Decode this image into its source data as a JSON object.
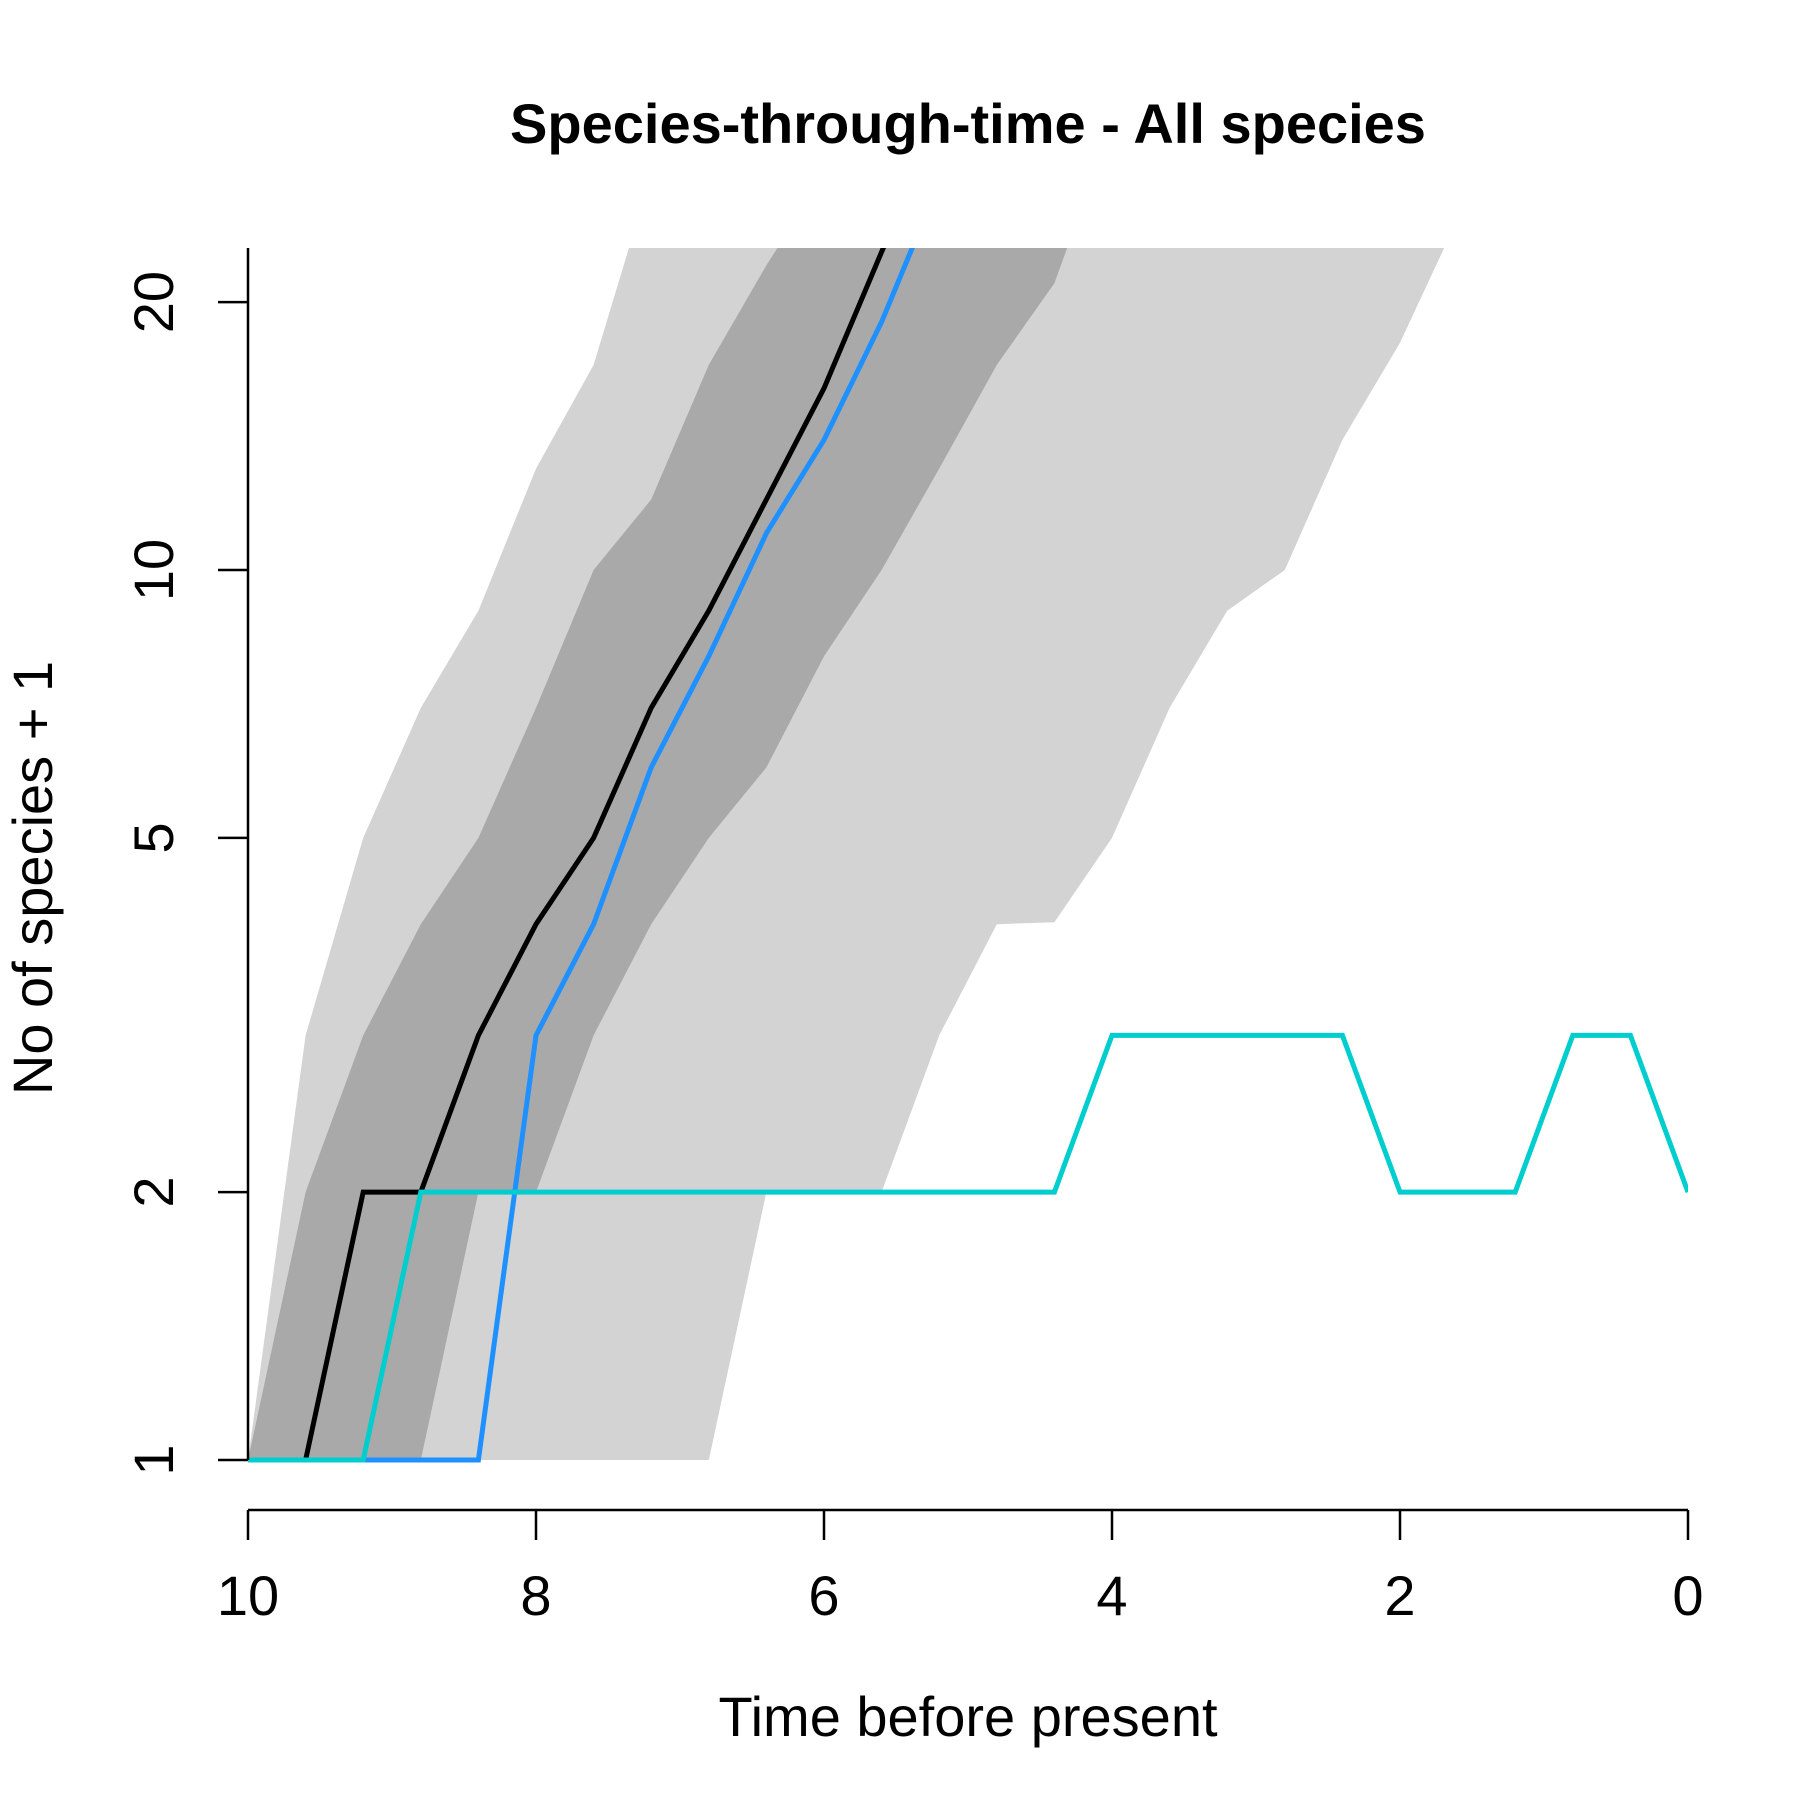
{
  "chart_data": {
    "type": "line",
    "title": "Species-through-time - All species",
    "xlabel": "Time before present",
    "ylabel": "No of species + 1",
    "xlim": [
      10,
      0
    ],
    "ylim": [
      0.9,
      22
    ],
    "y_scale": "log",
    "grid": false,
    "x_ticks": [
      {
        "value": 10,
        "label": "10"
      },
      {
        "value": 8,
        "label": "8"
      },
      {
        "value": 6,
        "label": "6"
      },
      {
        "value": 4,
        "label": "4"
      },
      {
        "value": 2,
        "label": "2"
      },
      {
        "value": 0,
        "label": "0"
      }
    ],
    "y_ticks": [
      {
        "value": 1,
        "label": "1"
      },
      {
        "value": 2,
        "label": "2"
      },
      {
        "value": 5,
        "label": "5"
      },
      {
        "value": 10,
        "label": "10"
      },
      {
        "value": 20,
        "label": "20"
      }
    ],
    "bands": [
      {
        "fill": "#d3d3d3",
        "upper": [
          [
            10,
            1
          ],
          [
            9.6,
            3
          ],
          [
            9.2,
            5
          ],
          [
            8.8,
            7
          ],
          [
            8.4,
            9
          ],
          [
            8.0,
            13
          ],
          [
            7.6,
            17
          ],
          [
            7.32,
            24
          ]
        ],
        "lower": [
          [
            10,
            1
          ],
          [
            6.8,
            1
          ],
          [
            6.4,
            2
          ],
          [
            5.6,
            2
          ],
          [
            5.2,
            3
          ],
          [
            4.8,
            4
          ],
          [
            4.4,
            4.02
          ],
          [
            4.0,
            5
          ],
          [
            3.6,
            7
          ],
          [
            3.2,
            9
          ],
          [
            2.8,
            10
          ],
          [
            2.4,
            14
          ],
          [
            2.0,
            18
          ],
          [
            1.64,
            24
          ]
        ]
      },
      {
        "fill": "#a9a9a9",
        "upper": [
          [
            10,
            1
          ],
          [
            9.6,
            2
          ],
          [
            9.2,
            3
          ],
          [
            8.8,
            4
          ],
          [
            8.4,
            5
          ],
          [
            8.0,
            7
          ],
          [
            7.6,
            10
          ],
          [
            7.2,
            12
          ],
          [
            6.8,
            17
          ],
          [
            6.4,
            22
          ],
          [
            6.25,
            24
          ]
        ],
        "lower": [
          [
            10,
            1
          ],
          [
            8.8,
            1
          ],
          [
            8.4,
            2
          ],
          [
            8.0,
            2
          ],
          [
            7.6,
            3
          ],
          [
            7.2,
            4
          ],
          [
            6.8,
            5
          ],
          [
            6.4,
            6
          ],
          [
            6.0,
            8
          ],
          [
            5.6,
            10
          ],
          [
            5.2,
            13
          ],
          [
            4.8,
            17
          ],
          [
            4.4,
            21
          ],
          [
            4.27,
            24
          ]
        ]
      }
    ],
    "series": [
      {
        "color": "#000000",
        "values": [
          [
            10,
            1
          ],
          [
            9.6,
            1
          ],
          [
            9.2,
            2
          ],
          [
            8.8,
            2
          ],
          [
            8.4,
            3
          ],
          [
            8.0,
            4
          ],
          [
            7.6,
            5
          ],
          [
            7.2,
            7
          ],
          [
            6.8,
            9
          ],
          [
            6.4,
            12
          ],
          [
            6.0,
            16
          ],
          [
            5.54,
            24
          ]
        ]
      },
      {
        "color": "#1e90ff",
        "values": [
          [
            10,
            1
          ],
          [
            8.4,
            1
          ],
          [
            8.0,
            3
          ],
          [
            7.6,
            4
          ],
          [
            7.2,
            6
          ],
          [
            6.8,
            8
          ],
          [
            6.4,
            11
          ],
          [
            6.0,
            14
          ],
          [
            5.6,
            19
          ],
          [
            5.34,
            24
          ]
        ]
      },
      {
        "color": "#00cdcd",
        "values": [
          [
            10,
            1
          ],
          [
            9.2,
            1
          ],
          [
            8.8,
            2
          ],
          [
            4.4,
            2
          ],
          [
            4.0,
            3
          ],
          [
            2.4,
            3
          ],
          [
            2.0,
            2
          ],
          [
            1.2,
            2
          ],
          [
            0.8,
            3
          ],
          [
            0.4,
            3
          ],
          [
            0,
            2
          ]
        ]
      }
    ]
  }
}
